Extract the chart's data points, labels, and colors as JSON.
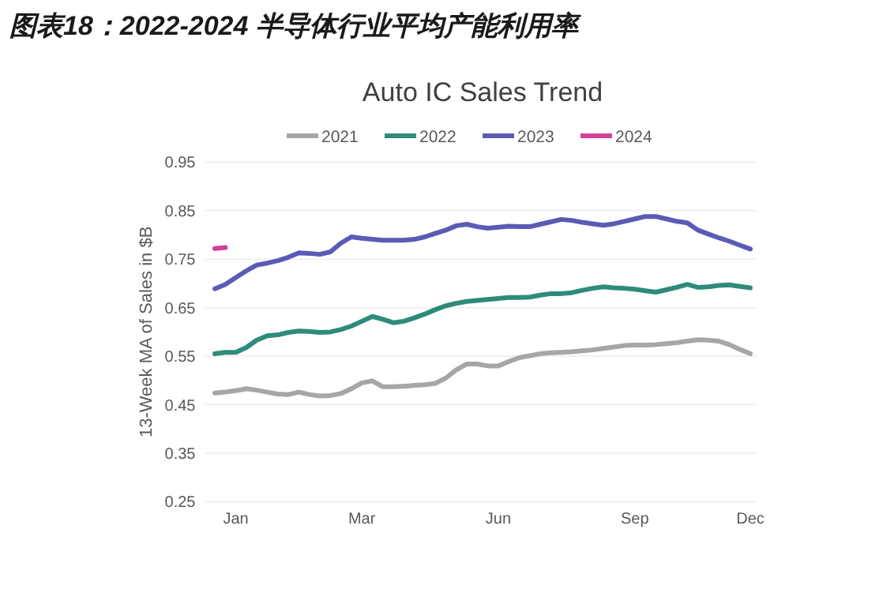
{
  "chart_data": {
    "type": "line",
    "title": "图表18：2022-2024 半导体行业平均产能利用率",
    "subtitle": "Auto IC Sales Trend",
    "ylabel": "13-Week MA of Sales in $B",
    "categories": [
      null,
      null,
      "Jan",
      null,
      null,
      null,
      null,
      null,
      null,
      null,
      null,
      null,
      null,
      null,
      "Mar",
      null,
      null,
      null,
      null,
      null,
      null,
      null,
      null,
      null,
      null,
      null,
      null,
      "Jun",
      null,
      null,
      null,
      null,
      null,
      null,
      null,
      null,
      null,
      null,
      null,
      null,
      "Sep",
      null,
      null,
      null,
      null,
      null,
      null,
      null,
      null,
      null,
      null,
      "Dec"
    ],
    "ylim": [
      0.25,
      0.95
    ],
    "yticks": [
      0.25,
      0.35,
      0.45,
      0.55,
      0.65,
      0.75,
      0.85,
      0.95
    ],
    "grid": "y",
    "legend": "top",
    "series": [
      {
        "name": "2021",
        "color": "#a6a6a6",
        "values": [
          0.474,
          0.476,
          0.479,
          0.483,
          0.48,
          0.476,
          0.472,
          0.471,
          0.476,
          0.471,
          0.468,
          0.469,
          0.473,
          0.483,
          0.495,
          0.499,
          0.487,
          0.487,
          0.488,
          0.49,
          0.491,
          0.494,
          0.505,
          0.522,
          0.534,
          0.534,
          0.53,
          0.53,
          0.539,
          0.547,
          0.551,
          0.555,
          0.557,
          0.558,
          0.559,
          0.561,
          0.563,
          0.566,
          0.569,
          0.572,
          0.573,
          0.573,
          0.574,
          0.576,
          0.578,
          0.581,
          0.584,
          0.583,
          0.581,
          0.574,
          0.564,
          0.555
        ]
      },
      {
        "name": "2022",
        "color": "#2e8b7a",
        "values": [
          0.555,
          0.558,
          0.558,
          0.568,
          0.583,
          0.592,
          0.594,
          0.599,
          0.602,
          0.601,
          0.599,
          0.6,
          0.605,
          0.612,
          0.622,
          0.632,
          0.626,
          0.619,
          0.622,
          0.629,
          0.637,
          0.646,
          0.654,
          0.659,
          0.663,
          0.665,
          0.667,
          0.669,
          0.671,
          0.671,
          0.672,
          0.676,
          0.679,
          0.679,
          0.681,
          0.686,
          0.69,
          0.693,
          0.691,
          0.69,
          0.688,
          0.685,
          0.682,
          0.687,
          0.692,
          0.698,
          0.692,
          0.693,
          0.696,
          0.697,
          0.694,
          0.691
        ]
      },
      {
        "name": "2023",
        "color": "#5b5bb5",
        "values": [
          0.689,
          0.698,
          0.712,
          0.726,
          0.738,
          0.742,
          0.747,
          0.754,
          0.763,
          0.762,
          0.76,
          0.765,
          0.783,
          0.796,
          0.793,
          0.791,
          0.789,
          0.789,
          0.789,
          0.791,
          0.796,
          0.803,
          0.81,
          0.819,
          0.822,
          0.817,
          0.814,
          0.816,
          0.818,
          0.817,
          0.817,
          0.822,
          0.827,
          0.832,
          0.83,
          0.826,
          0.823,
          0.82,
          0.823,
          0.828,
          0.833,
          0.838,
          0.838,
          0.833,
          0.828,
          0.825,
          0.81,
          0.802,
          0.794,
          0.787,
          0.779,
          0.771
        ]
      },
      {
        "name": "2024",
        "color": "#d0409a",
        "values": [
          0.772,
          0.774,
          null,
          null,
          null,
          null,
          null,
          null,
          null,
          null,
          null,
          null,
          null,
          null,
          null,
          null,
          null,
          null,
          null,
          null,
          null,
          null,
          null,
          null,
          null,
          null,
          null,
          null,
          null,
          null,
          null,
          null,
          null,
          null,
          null,
          null,
          null,
          null,
          null,
          null,
          null,
          null,
          null,
          null,
          null,
          null,
          null,
          null,
          null,
          null,
          null,
          null
        ]
      }
    ]
  }
}
